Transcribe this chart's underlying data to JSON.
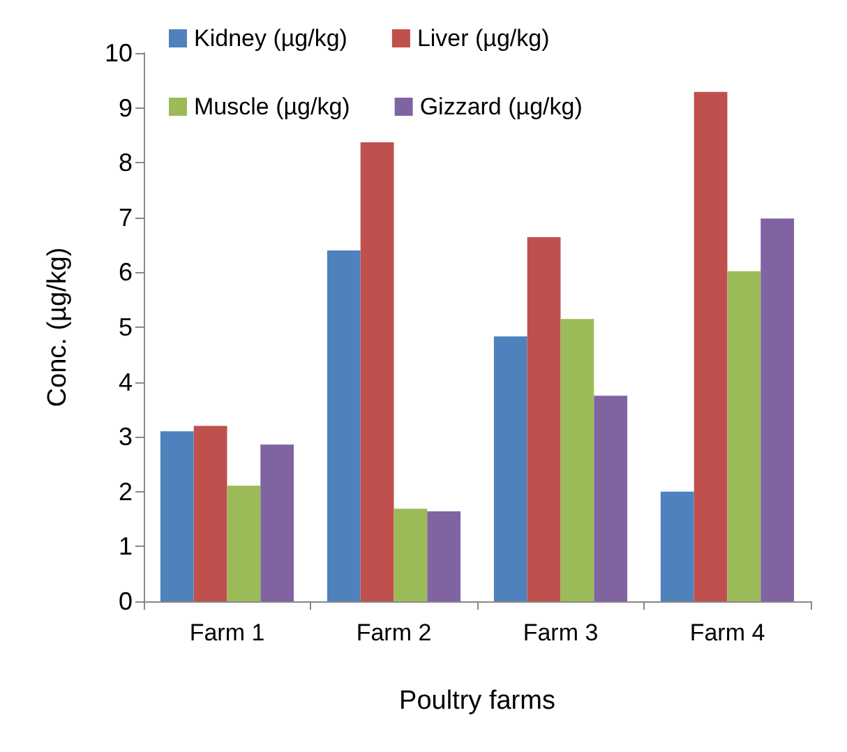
{
  "chart_data": {
    "type": "bar",
    "xlabel": "Poultry farms",
    "ylabel": "Conc. (µg/kg)",
    "categories": [
      "Farm 1",
      "Farm 2",
      "Farm 3",
      "Farm 4"
    ],
    "series": [
      {
        "name": "Kidney (µg/kg)",
        "color": "#4f81bd",
        "values": [
          3.1,
          6.4,
          4.83,
          2.0
        ]
      },
      {
        "name": "Liver (µg/kg)",
        "color": "#c0504d",
        "values": [
          3.2,
          8.37,
          6.64,
          9.29
        ]
      },
      {
        "name": "Muscle (µg/kg)",
        "color": "#9bbb59",
        "values": [
          2.11,
          1.69,
          5.15,
          6.02
        ]
      },
      {
        "name": "Gizzard (µg/kg)",
        "color": "#8064a2",
        "values": [
          2.86,
          1.64,
          3.75,
          6.98
        ]
      }
    ],
    "ylim": [
      0,
      10
    ],
    "yticks": [
      0,
      1,
      2,
      3,
      4,
      5,
      6,
      7,
      8,
      9,
      10
    ],
    "grid": false,
    "legend": "top"
  }
}
